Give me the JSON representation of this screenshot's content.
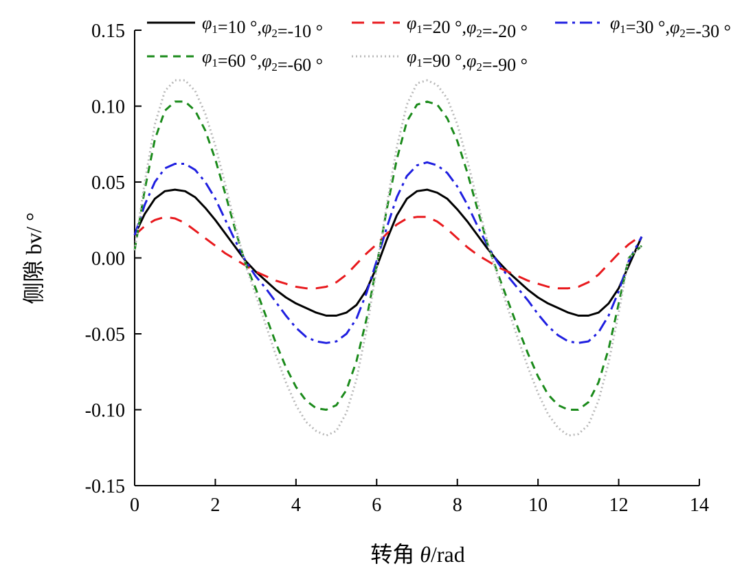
{
  "chart_data": {
    "type": "line",
    "title": "",
    "xlabel": {
      "prefix": "转角 ",
      "symbol": "θ",
      "suffix": "/rad"
    },
    "ylabel": "侧隙 bv/ °",
    "xlim": [
      0,
      14
    ],
    "ylim": [
      -0.15,
      0.15
    ],
    "xticks": [
      0,
      2,
      4,
      6,
      8,
      10,
      12,
      14
    ],
    "xtick_labels": [
      "0",
      "2",
      "4",
      "6",
      "8",
      "10",
      "12",
      "14"
    ],
    "yticks": [
      -0.15,
      -0.1,
      -0.05,
      0.0,
      0.05,
      0.1,
      0.15
    ],
    "ytick_labels": [
      "-0.15",
      "-0.10",
      "-0.05",
      "0.00",
      "0.05",
      "0.10",
      "0.15"
    ],
    "grid": false,
    "legend_position": "top",
    "x": [
      0,
      0.25,
      0.5,
      0.75,
      1.0,
      1.25,
      1.5,
      1.75,
      2.0,
      2.25,
      2.5,
      2.75,
      3.0,
      3.25,
      3.5,
      3.75,
      4.0,
      4.25,
      4.5,
      4.75,
      5.0,
      5.25,
      5.5,
      5.75,
      6.0,
      6.25,
      6.5,
      6.75,
      7.0,
      7.25,
      7.5,
      7.75,
      8.0,
      8.25,
      8.5,
      8.75,
      9.0,
      9.25,
      9.5,
      9.75,
      10.0,
      10.25,
      10.5,
      10.75,
      11.0,
      11.25,
      11.5,
      11.75,
      12.0,
      12.25,
      12.57
    ],
    "series": [
      {
        "name": "φ1=10 °,φ2=-10 °",
        "color": "#000000",
        "dash": "solid",
        "values": [
          0.015,
          0.029,
          0.039,
          0.044,
          0.045,
          0.044,
          0.04,
          0.033,
          0.025,
          0.016,
          0.007,
          -0.002,
          -0.009,
          -0.015,
          -0.021,
          -0.026,
          -0.03,
          -0.033,
          -0.036,
          -0.038,
          -0.038,
          -0.036,
          -0.031,
          -0.021,
          -0.006,
          0.012,
          0.028,
          0.039,
          0.044,
          0.045,
          0.043,
          0.039,
          0.032,
          0.024,
          0.015,
          0.006,
          -0.002,
          -0.009,
          -0.015,
          -0.021,
          -0.026,
          -0.03,
          -0.033,
          -0.036,
          -0.038,
          -0.038,
          -0.036,
          -0.03,
          -0.02,
          -0.005,
          0.014
        ]
      },
      {
        "name": "φ1=20 °,φ2=-20 °",
        "color": "#e8191d",
        "dash": "18 12",
        "values": [
          0.015,
          0.021,
          0.025,
          0.027,
          0.026,
          0.023,
          0.018,
          0.013,
          0.008,
          0.003,
          -0.001,
          -0.005,
          -0.009,
          -0.012,
          -0.015,
          -0.017,
          -0.019,
          -0.02,
          -0.02,
          -0.019,
          -0.016,
          -0.011,
          -0.004,
          0.003,
          0.009,
          0.016,
          0.022,
          0.026,
          0.027,
          0.027,
          0.024,
          0.019,
          0.013,
          0.007,
          0.002,
          -0.002,
          -0.006,
          -0.009,
          -0.012,
          -0.015,
          -0.017,
          -0.019,
          -0.02,
          -0.02,
          -0.019,
          -0.016,
          -0.011,
          -0.004,
          0.003,
          0.009,
          0.015
        ]
      },
      {
        "name": "φ1=30 °,φ2=-30 °",
        "color": "#1f1fe0",
        "dash": "18 7 4 7",
        "values": [
          0.015,
          0.035,
          0.05,
          0.059,
          0.062,
          0.062,
          0.058,
          0.05,
          0.039,
          0.025,
          0.011,
          -0.002,
          -0.012,
          -0.02,
          -0.029,
          -0.038,
          -0.046,
          -0.052,
          -0.055,
          -0.056,
          -0.055,
          -0.05,
          -0.04,
          -0.023,
          -0.002,
          0.02,
          0.04,
          0.054,
          0.061,
          0.063,
          0.061,
          0.056,
          0.047,
          0.035,
          0.021,
          0.008,
          -0.003,
          -0.012,
          -0.02,
          -0.028,
          -0.037,
          -0.045,
          -0.051,
          -0.055,
          -0.056,
          -0.055,
          -0.049,
          -0.038,
          -0.022,
          -0.002,
          0.014
        ]
      },
      {
        "name": "φ1=60 °,φ2=-60 °",
        "color": "#1a8a1a",
        "dash": "11 8",
        "values": [
          0.005,
          0.045,
          0.078,
          0.097,
          0.103,
          0.103,
          0.097,
          0.084,
          0.065,
          0.042,
          0.018,
          -0.004,
          -0.02,
          -0.038,
          -0.056,
          -0.072,
          -0.085,
          -0.094,
          -0.099,
          -0.1,
          -0.097,
          -0.087,
          -0.068,
          -0.04,
          -0.005,
          0.032,
          0.065,
          0.09,
          0.101,
          0.103,
          0.101,
          0.092,
          0.077,
          0.056,
          0.032,
          0.009,
          -0.01,
          -0.028,
          -0.046,
          -0.063,
          -0.078,
          -0.09,
          -0.097,
          -0.1,
          -0.1,
          -0.095,
          -0.082,
          -0.06,
          -0.03,
          0.0,
          0.008
        ]
      },
      {
        "name": "φ1=90 °,φ2=-90 °",
        "color": "#b8b8b8",
        "dash": "2 4",
        "values": [
          0.005,
          0.05,
          0.088,
          0.11,
          0.117,
          0.117,
          0.11,
          0.095,
          0.074,
          0.048,
          0.021,
          -0.005,
          -0.024,
          -0.044,
          -0.064,
          -0.082,
          -0.097,
          -0.108,
          -0.114,
          -0.117,
          -0.114,
          -0.102,
          -0.08,
          -0.047,
          -0.007,
          0.035,
          0.073,
          0.101,
          0.115,
          0.117,
          0.114,
          0.105,
          0.088,
          0.064,
          0.037,
          0.01,
          -0.012,
          -0.033,
          -0.053,
          -0.072,
          -0.089,
          -0.103,
          -0.112,
          -0.117,
          -0.116,
          -0.11,
          -0.094,
          -0.069,
          -0.036,
          0.0,
          0.008
        ]
      }
    ]
  }
}
